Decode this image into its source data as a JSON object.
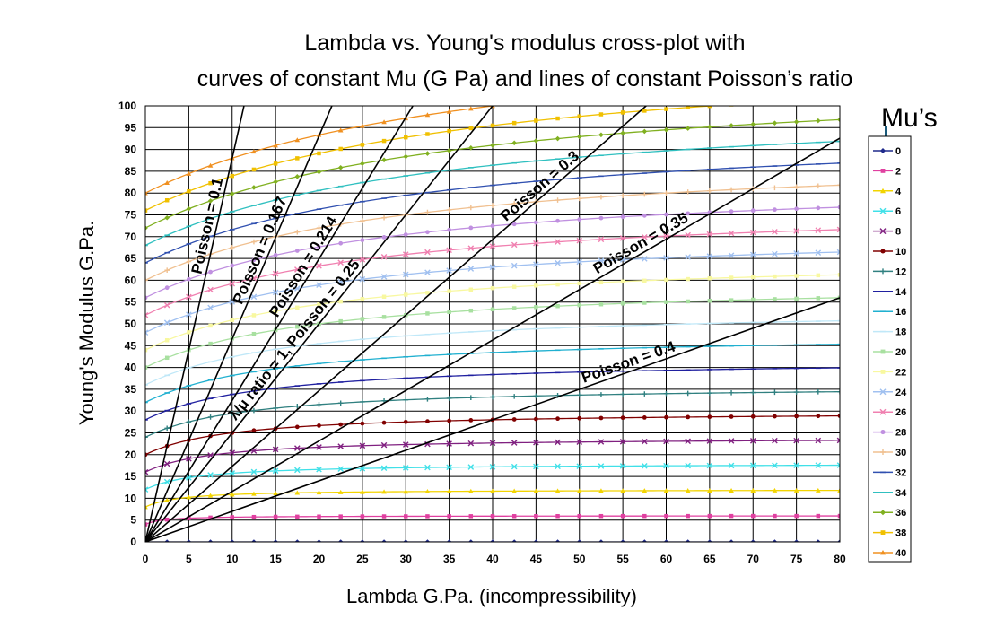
{
  "chart_data": {
    "type": "line",
    "title": [
      "Lambda vs. Young's modulus cross-plot with",
      "curves of constant Mu (G Pa) and lines of constant Poisson’s ratio"
    ],
    "xlabel": "Lambda G.Pa. (incompressibility)",
    "ylabel": "Young's Modulus G.Pa.",
    "xlim": [
      0,
      80
    ],
    "ylim": [
      0,
      100
    ],
    "xticks": [
      "0",
      "5",
      "10",
      "15",
      "20",
      "25",
      "30",
      "35",
      "40",
      "45",
      "50",
      "55",
      "60",
      "65",
      "70",
      "75",
      "80"
    ],
    "yticks": [
      "0",
      "5",
      "10",
      "15",
      "20",
      "25",
      "30",
      "35",
      "40",
      "45",
      "50",
      "55",
      "60",
      "65",
      "70",
      "75",
      "80",
      "85",
      "90",
      "95",
      "100"
    ],
    "grid": true,
    "legend_title": "Mu’s",
    "legend_placement": "right",
    "x_samples": [
      0,
      2.5,
      5,
      7.5,
      10,
      12.5,
      15,
      17.5,
      20,
      22.5,
      25,
      27.5,
      30,
      32.5,
      35,
      37.5,
      40,
      42.5,
      45,
      47.5,
      50,
      52.5,
      55,
      57.5,
      60,
      62.5,
      65,
      67.5,
      70,
      72.5,
      75,
      77.5,
      80
    ],
    "mu_series": [
      {
        "name": "0",
        "mu": 0,
        "color": "#1f2a8c",
        "marker": "diamond"
      },
      {
        "name": "2",
        "mu": 2,
        "color": "#e040a0",
        "marker": "square"
      },
      {
        "name": "4",
        "mu": 4,
        "color": "#f2d400",
        "marker": "triangle"
      },
      {
        "name": "6",
        "mu": 6,
        "color": "#40e0e8",
        "marker": "x"
      },
      {
        "name": "8",
        "mu": 8,
        "color": "#802080",
        "marker": "x"
      },
      {
        "name": "10",
        "mu": 10,
        "color": "#800000",
        "marker": "circle"
      },
      {
        "name": "12",
        "mu": 12,
        "color": "#308080",
        "marker": "plus"
      },
      {
        "name": "14",
        "mu": 14,
        "color": "#2020a0",
        "marker": "dash"
      },
      {
        "name": "16",
        "mu": 16,
        "color": "#20b0d0",
        "marker": "dash"
      },
      {
        "name": "18",
        "mu": 18,
        "color": "#c0e8f8",
        "marker": "dash"
      },
      {
        "name": "20",
        "mu": 20,
        "color": "#a8e0a0",
        "marker": "square"
      },
      {
        "name": "22",
        "mu": 22,
        "color": "#f8f8a0",
        "marker": "square"
      },
      {
        "name": "24",
        "mu": 24,
        "color": "#a0c0f0",
        "marker": "x"
      },
      {
        "name": "26",
        "mu": 26,
        "color": "#f080b0",
        "marker": "x"
      },
      {
        "name": "28",
        "mu": 28,
        "color": "#c090e0",
        "marker": "circle"
      },
      {
        "name": "30",
        "mu": 30,
        "color": "#f0c090",
        "marker": "plus"
      },
      {
        "name": "32",
        "mu": 32,
        "color": "#3050b0",
        "marker": "dash"
      },
      {
        "name": "34",
        "mu": 34,
        "color": "#30c0c0",
        "marker": "dash"
      },
      {
        "name": "36",
        "mu": 36,
        "color": "#80b020",
        "marker": "diamond"
      },
      {
        "name": "38",
        "mu": 38,
        "color": "#f0c000",
        "marker": "square"
      },
      {
        "name": "40",
        "mu": 40,
        "color": "#f09020",
        "marker": "triangle"
      }
    ],
    "poisson_lines": [
      {
        "label": "Poisson = 0.1",
        "nu": 0.1
      },
      {
        "label": "Poisson = 0.167",
        "nu": 0.167
      },
      {
        "label": "Poisson = 0.214",
        "nu": 0.214
      },
      {
        "label": "λ/μ ratio = 1, Poisson = 0.25",
        "nu": 0.25
      },
      {
        "label": "Poisson = 0.3",
        "nu": 0.3
      },
      {
        "label": "Poisson = 0.35",
        "nu": 0.35
      },
      {
        "label": "Poisson = 0.4",
        "nu": 0.4
      }
    ]
  }
}
